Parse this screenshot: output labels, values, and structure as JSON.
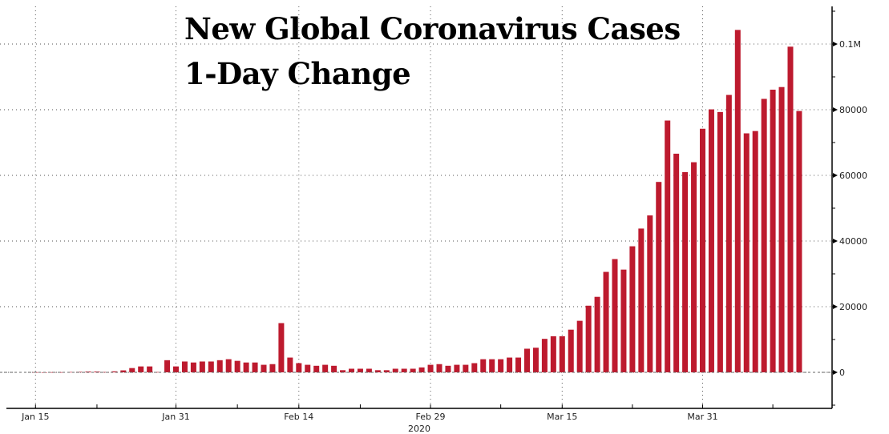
{
  "chart_data": {
    "type": "bar",
    "title": "New Global Coronavirus Cases",
    "subtitle": "1-Day Change",
    "xlabel": "2020",
    "ylabel": "",
    "start_date": "2020-01-15",
    "end_date": "2020-04-11",
    "x_tick_labels": [
      "Jan 15",
      "Jan 31",
      "Feb 14",
      "Feb 29",
      "Mar 15",
      "Mar 31"
    ],
    "x_tick_indices": [
      0,
      16,
      30,
      45,
      60,
      76
    ],
    "x_minor_tick_indices": [
      7,
      23,
      37,
      53,
      68,
      84
    ],
    "year_label": "2020",
    "y_ticks": [
      0,
      20000,
      40000,
      60000,
      80000,
      100000
    ],
    "y_tick_labels": [
      "0",
      "20000",
      "40000",
      "60000",
      "80000",
      "0.1M"
    ],
    "ylim": [
      -11000,
      111000
    ],
    "grid": true,
    "bar_color": "#bd1a2e",
    "values": [
      50,
      20,
      50,
      50,
      100,
      150,
      250,
      250,
      100,
      300,
      600,
      1300,
      1800,
      1800,
      100,
      3700,
      1800,
      3300,
      3000,
      3300,
      3300,
      3700,
      4000,
      3500,
      3000,
      3000,
      2300,
      2500,
      15000,
      4500,
      2800,
      2300,
      2000,
      2300,
      2000,
      650,
      1100,
      1100,
      1100,
      650,
      650,
      1100,
      1100,
      1100,
      1500,
      2300,
      2500,
      2000,
      2300,
      2300,
      2800,
      4000,
      4000,
      4000,
      4500,
      4500,
      7200,
      7500,
      10200,
      11000,
      11000,
      13000,
      15700,
      20300,
      23000,
      30600,
      34500,
      31300,
      38400,
      43800,
      47800,
      58000,
      76700,
      66600,
      61000,
      64000,
      74200,
      80100,
      79300,
      84500,
      104300,
      72800,
      73500,
      83300,
      86100,
      86900,
      99200,
      79600
    ]
  }
}
